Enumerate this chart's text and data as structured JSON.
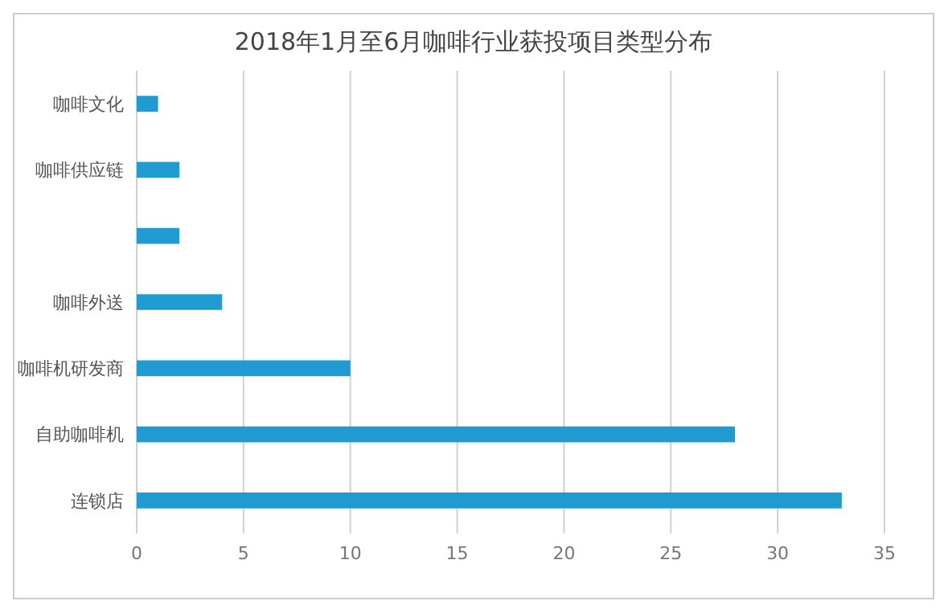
{
  "chart_data": {
    "type": "bar",
    "orientation": "horizontal",
    "title": "2018年1月至6月咖啡行业获投项目类型分布",
    "categories": [
      "咖啡文化",
      "咖啡供应链",
      null,
      "咖啡外送",
      "咖啡机研发商",
      "自助咖啡机",
      "连锁店"
    ],
    "values": [
      1,
      2,
      2,
      4,
      10,
      28,
      33
    ],
    "color": "#1f9bd1",
    "xlim": [
      0,
      35
    ],
    "xticks": [
      0,
      5,
      10,
      15,
      20,
      25,
      30,
      35
    ],
    "grid": "x"
  }
}
